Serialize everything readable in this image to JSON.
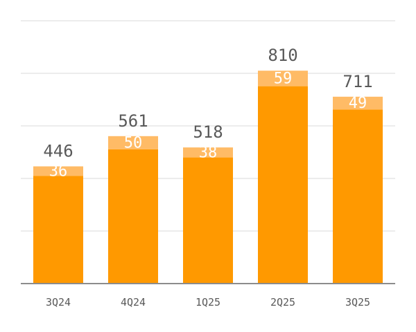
{
  "chart_data": {
    "type": "bar",
    "stacked": true,
    "categories": [
      "3Q24",
      "4Q24",
      "1Q25",
      "2Q25",
      "3Q25"
    ],
    "series": [
      {
        "values": [
          410,
          511,
          480,
          751,
          662
        ],
        "color": "#ff9900"
      },
      {
        "values": [
          36,
          50,
          38,
          59,
          49
        ],
        "color": "#ffbb66"
      }
    ],
    "totals": [
      446,
      561,
      518,
      810,
      711
    ],
    "ylim": [
      0,
      1000
    ],
    "grid": true,
    "title": "",
    "xlabel": "",
    "ylabel": ""
  }
}
